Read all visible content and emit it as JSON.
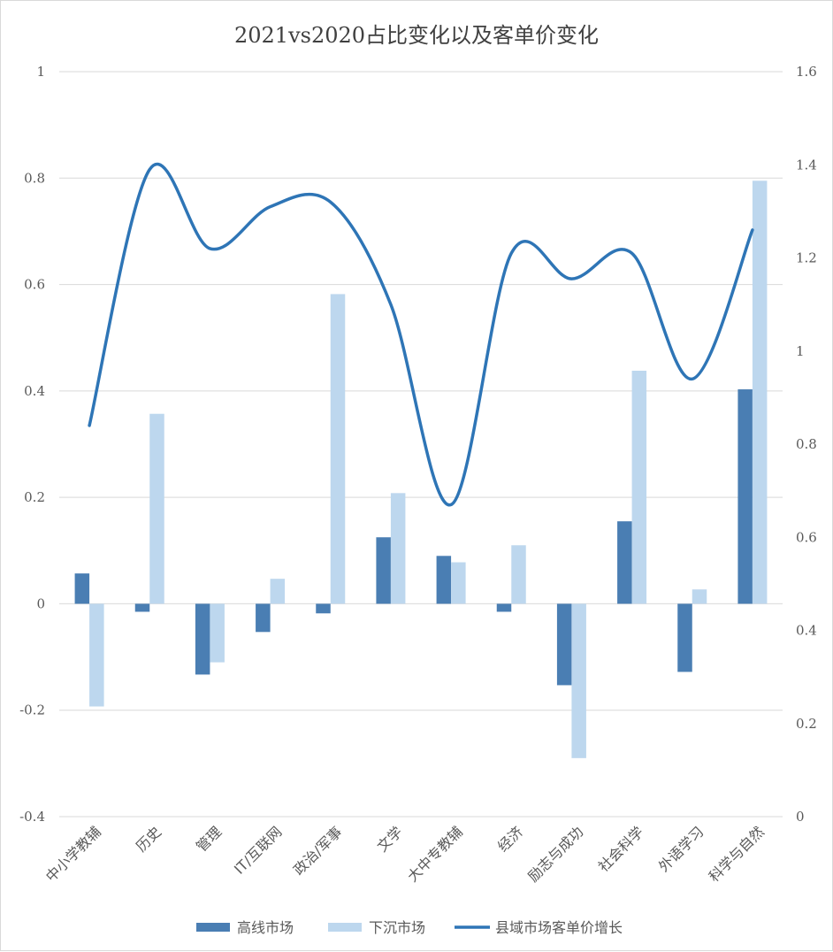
{
  "chart_data": {
    "type": "bar",
    "title": "2021vs2020占比变化以及客单价变化",
    "categories": [
      "中小学教辅",
      "历史",
      "管理",
      "IT/互联网",
      "政治/军事",
      "文学",
      "大中专教辅",
      "经济",
      "励志与成功",
      "社会科学",
      "外语学习",
      "科学与自然"
    ],
    "series": [
      {
        "name": "高线市场",
        "type": "bar",
        "axis": "left",
        "color": "#4a7eb3",
        "values": [
          0.057,
          -0.015,
          -0.133,
          -0.053,
          -0.018,
          0.125,
          0.09,
          -0.015,
          -0.153,
          0.155,
          -0.128,
          0.403
        ]
      },
      {
        "name": "下沉市场",
        "type": "bar",
        "axis": "left",
        "color": "#bdd7ee",
        "values": [
          -0.193,
          0.357,
          -0.11,
          0.047,
          0.582,
          0.208,
          0.078,
          0.11,
          -0.29,
          0.438,
          0.027,
          0.795
        ]
      },
      {
        "name": "县域市场客单价增长",
        "type": "line",
        "axis": "right",
        "color": "#2e75b6",
        "smooth": true,
        "values": [
          0.84,
          1.39,
          1.22,
          1.31,
          1.32,
          1.1,
          0.67,
          1.21,
          1.155,
          1.21,
          0.94,
          1.26
        ]
      }
    ],
    "y_left": {
      "min": -0.4,
      "max": 1,
      "ticks": [
        "-0.4",
        "-0.2",
        "0",
        "0.2",
        "0.4",
        "0.6",
        "0.8",
        "1"
      ]
    },
    "y_right": {
      "min": 0,
      "max": 1.6,
      "ticks": [
        "0",
        "0.2",
        "0.4",
        "0.6",
        "0.8",
        "1",
        "1.2",
        "1.4",
        "1.6"
      ]
    },
    "grid": true,
    "legend_position": "bottom"
  }
}
